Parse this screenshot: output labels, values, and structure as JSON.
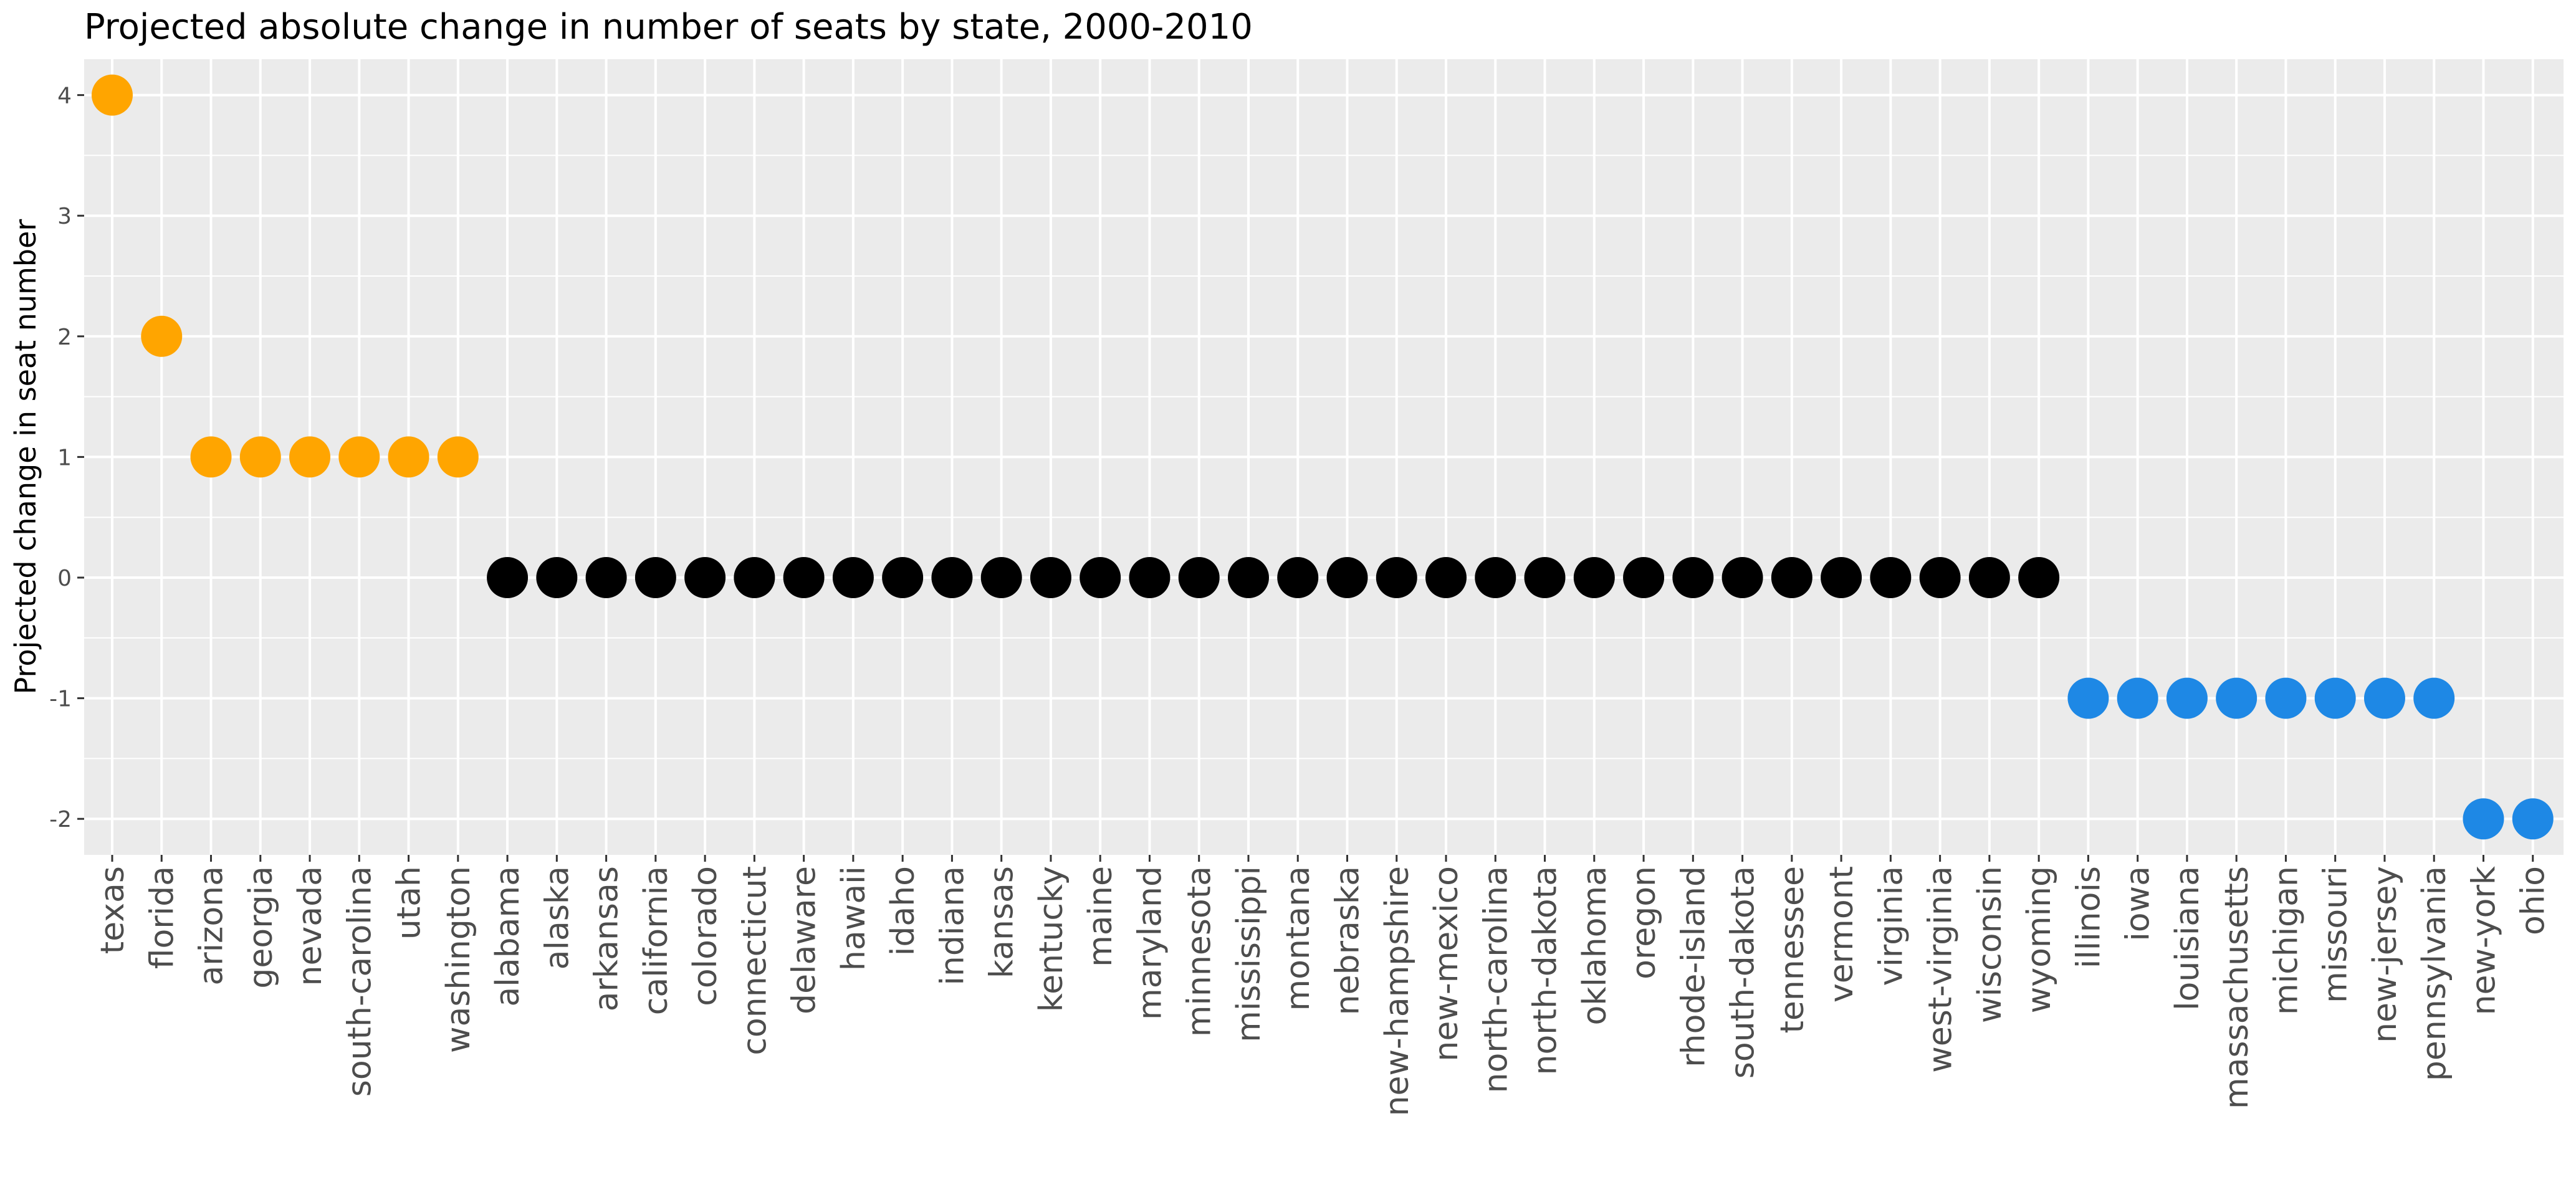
{
  "chart_data": {
    "type": "scatter",
    "title": "Projected absolute change in number of seats by state, 2000-2010",
    "xlabel": "",
    "ylabel": "Projected change in seat number",
    "ylim": [
      -2.3,
      4.25
    ],
    "yticks": [
      4,
      3,
      2,
      1,
      0,
      -1,
      -2
    ],
    "ytick_labels": [
      "4",
      "3",
      "2",
      "1",
      "0",
      "-1",
      "-2"
    ],
    "grid": true,
    "legend": "none",
    "colors": {
      "gain": "#ffa500",
      "none": "#000000",
      "loss": "#1e88e5",
      "panel": "#ebebeb",
      "grid": "#ffffff"
    },
    "categories": [
      "texas",
      "florida",
      "arizona",
      "georgia",
      "nevada",
      "south-carolina",
      "utah",
      "washington",
      "alabama",
      "alaska",
      "arkansas",
      "california",
      "colorado",
      "connecticut",
      "delaware",
      "hawaii",
      "idaho",
      "indiana",
      "kansas",
      "kentucky",
      "maine",
      "maryland",
      "minnesota",
      "mississippi",
      "montana",
      "nebraska",
      "new-hampshire",
      "new-mexico",
      "north-carolina",
      "north-dakota",
      "oklahoma",
      "oregon",
      "rhode-island",
      "south-dakota",
      "tennessee",
      "vermont",
      "virginia",
      "west-virginia",
      "wisconsin",
      "wyoming",
      "illinois",
      "iowa",
      "louisiana",
      "massachusetts",
      "michigan",
      "missouri",
      "new-jersey",
      "pennsylvania",
      "new-york",
      "ohio"
    ],
    "values": [
      4,
      2,
      1,
      1,
      1,
      1,
      1,
      1,
      0,
      0,
      0,
      0,
      0,
      0,
      0,
      0,
      0,
      0,
      0,
      0,
      0,
      0,
      0,
      0,
      0,
      0,
      0,
      0,
      0,
      0,
      0,
      0,
      0,
      0,
      0,
      0,
      0,
      0,
      0,
      0,
      -1,
      -1,
      -1,
      -1,
      -1,
      -1,
      -1,
      -1,
      -2,
      -2
    ]
  }
}
